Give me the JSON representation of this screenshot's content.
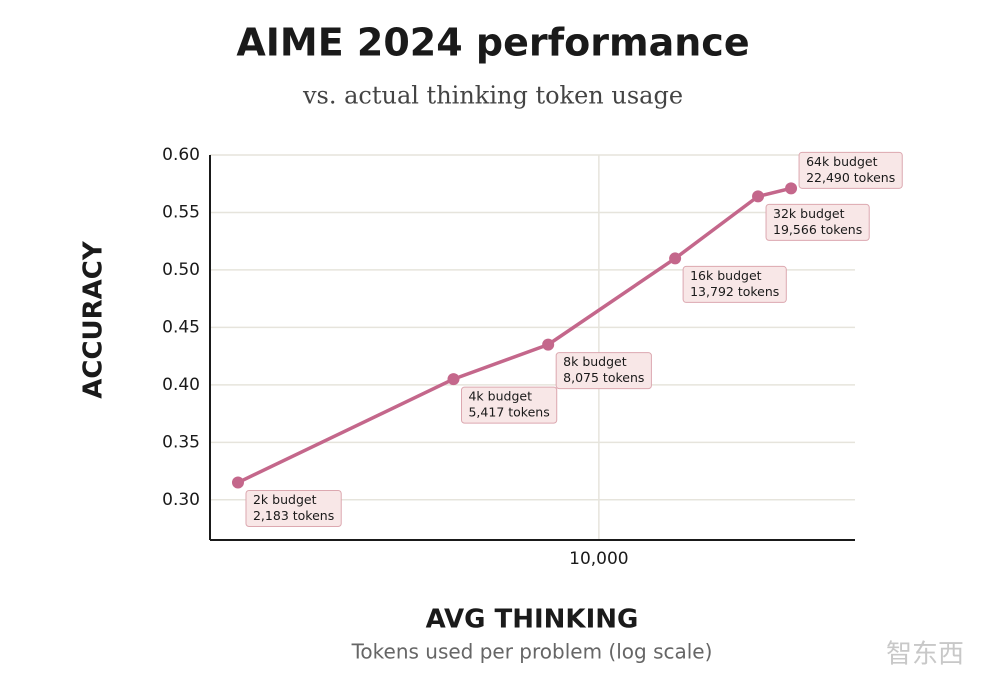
{
  "chart_data": {
    "type": "line",
    "title": "AIME 2024 performance",
    "subtitle": "vs. actual thinking token usage",
    "y_label": "ACCURACY",
    "x_label": "AVG THINKING",
    "x_sublabel": "Tokens used per problem (log scale)",
    "x": [
      2183,
      5417,
      8075,
      13792,
      19566,
      22490
    ],
    "series": [
      {
        "color": "#c4678b",
        "values": [
          0.315,
          0.405,
          0.435,
          0.51,
          0.564,
          0.571
        ]
      }
    ],
    "point_labels": [
      [
        "2k budget",
        "2,183 tokens"
      ],
      [
        "4k budget",
        "5,417 tokens"
      ],
      [
        "8k budget",
        "8,075 tokens"
      ],
      [
        "16k budget",
        "13,792 tokens"
      ],
      [
        "32k budget",
        "19,566 tokens"
      ],
      [
        "64k budget",
        "22,490 tokens"
      ]
    ],
    "x_log": true,
    "xlim": [
      1940,
      29450
    ],
    "xticks": [
      {
        "value": 10000,
        "label": "10,000"
      }
    ],
    "ylim": [
      0.265,
      0.6
    ],
    "yticks": [
      {
        "value": 0.3,
        "label": "0.30"
      },
      {
        "value": 0.35,
        "label": "0.35"
      },
      {
        "value": 0.4,
        "label": "0.40"
      },
      {
        "value": 0.45,
        "label": "0.45"
      },
      {
        "value": 0.5,
        "label": "0.50"
      },
      {
        "value": 0.55,
        "label": "0.55"
      },
      {
        "value": 0.6,
        "label": "0.60"
      }
    ],
    "grid": true,
    "watermark": "智东西"
  }
}
